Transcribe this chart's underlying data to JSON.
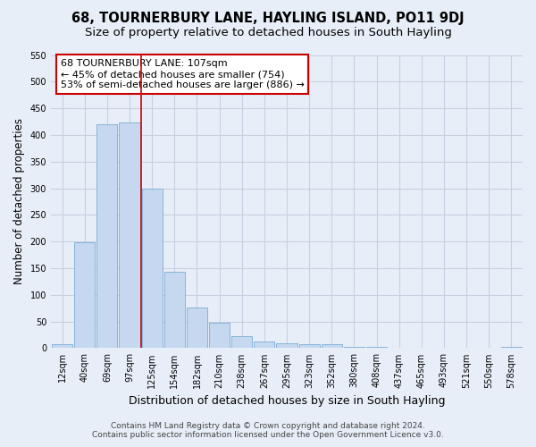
{
  "title": "68, TOURNERBURY LANE, HAYLING ISLAND, PO11 9DJ",
  "subtitle": "Size of property relative to detached houses in South Hayling",
  "xlabel": "Distribution of detached houses by size in South Hayling",
  "ylabel": "Number of detached properties",
  "categories": [
    "12sqm",
    "40sqm",
    "69sqm",
    "97sqm",
    "125sqm",
    "154sqm",
    "182sqm",
    "210sqm",
    "238sqm",
    "267sqm",
    "295sqm",
    "323sqm",
    "352sqm",
    "380sqm",
    "408sqm",
    "437sqm",
    "465sqm",
    "493sqm",
    "521sqm",
    "550sqm",
    "578sqm"
  ],
  "values": [
    8,
    198,
    420,
    423,
    300,
    143,
    77,
    48,
    23,
    12,
    9,
    8,
    7,
    3,
    3,
    0,
    0,
    0,
    0,
    0,
    3
  ],
  "bar_color": "#c5d8f0",
  "bar_edge_color": "#7aadd4",
  "grid_color": "#c8cfe0",
  "bg_color": "#e8eef8",
  "plot_bg_color": "#e8eef8",
  "vline_x_index": 3.5,
  "vline_color": "#cc0000",
  "annotation_text": "68 TOURNERBURY LANE: 107sqm\n← 45% of detached houses are smaller (754)\n53% of semi-detached houses are larger (886) →",
  "annotation_box_color": "#ffffff",
  "annotation_box_edge": "#cc0000",
  "footer_line1": "Contains HM Land Registry data © Crown copyright and database right 2024.",
  "footer_line2": "Contains public sector information licensed under the Open Government Licence v3.0.",
  "title_fontsize": 10.5,
  "subtitle_fontsize": 9.5,
  "ylabel_fontsize": 8.5,
  "xlabel_fontsize": 9,
  "tick_fontsize": 7,
  "annotation_fontsize": 8,
  "footer_fontsize": 6.5,
  "ylim": [
    0,
    550
  ],
  "yticks": [
    0,
    50,
    100,
    150,
    200,
    250,
    300,
    350,
    400,
    450,
    500,
    550
  ]
}
